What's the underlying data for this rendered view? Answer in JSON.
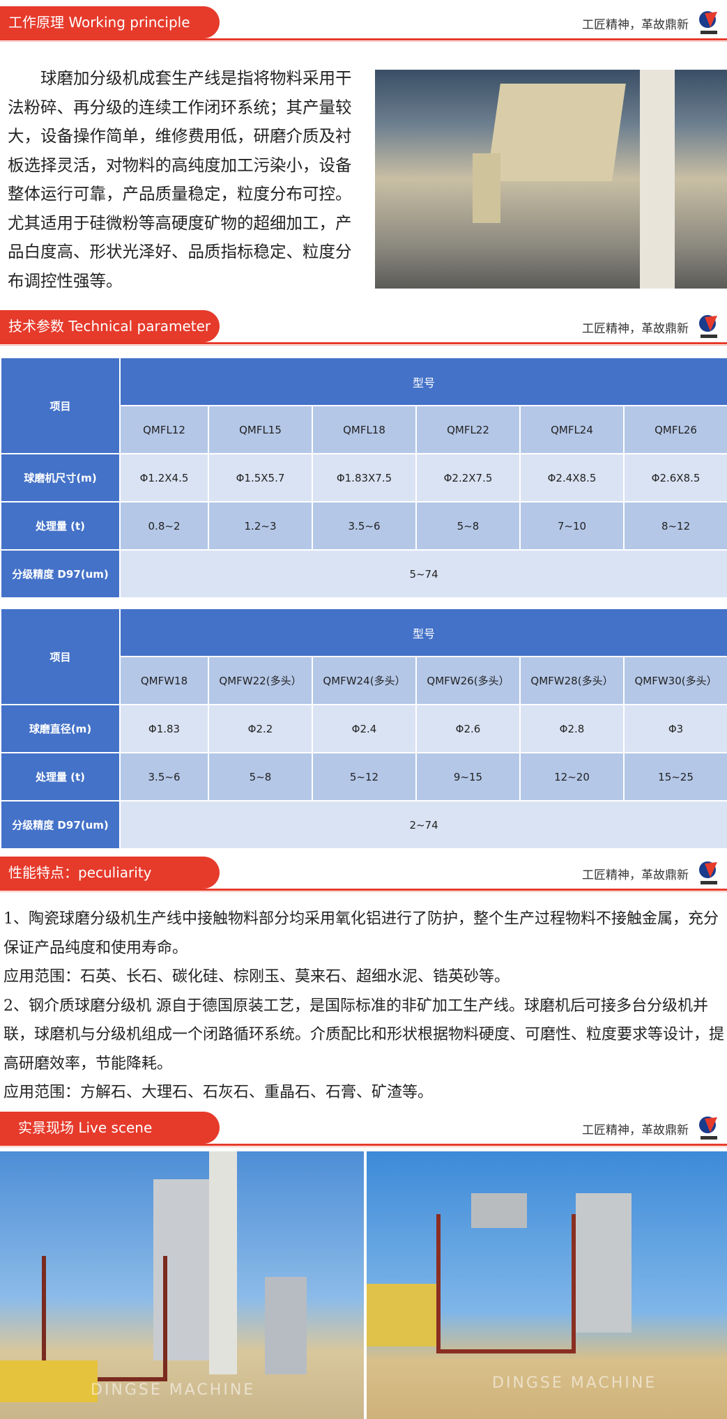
{
  "slogan": "工匠精神，革故鼎新",
  "sections": {
    "working": "工作原理  Working principle",
    "tech": "技术参数 Technical parameter",
    "peculiarity": "性能特点：peculiarity",
    "live": "实景现场    Live scene"
  },
  "working_text": "球磨加分级机成套生产线是指将物料采用干法粉碎、再分级的连续工作闭环系统；其产量较大，设备操作简单，维修费用低，研磨介质及衬板选择灵活，对物料的高纯度加工污染小，设备整体运行可靠，产品质量稳定，粒度分布可控。尤其适用于硅微粉等高硬度矿物的超细加工，产品白度高、形状光泽好、品质指标稳定、粒度分布调控性强等。",
  "table1": {
    "item_header": "项目",
    "model_header": "型号",
    "models": [
      "QMFL12",
      "QMFL15",
      "QMFL18",
      "QMFL22",
      "QMFL24",
      "QMFL26"
    ],
    "rows": [
      {
        "label": "球磨机尺寸(m)",
        "values": [
          "Φ1.2X4.5",
          "Φ1.5X5.7",
          "Φ1.83X7.5",
          "Φ2.2X7.5",
          "Φ2.4X8.5",
          "Φ2.6X8.5"
        ]
      },
      {
        "label": "处理量 (t)",
        "values": [
          "0.8~2",
          "1.2~3",
          "3.5~6",
          "5~8",
          "7~10",
          "8~12"
        ]
      }
    ],
    "precision_label": "分级精度 D97(um)",
    "precision_value": "5~74"
  },
  "table2": {
    "item_header": "项目",
    "model_header": "型号",
    "models": [
      "QMFW18",
      "QMFW22(多头）",
      "QMFW24(多头）",
      "QMFW26(多头）",
      "QMFW28(多头）",
      "QMFW30(多头）"
    ],
    "rows": [
      {
        "label": "球磨直径(m)",
        "values": [
          "Φ1.83",
          "Φ2.2",
          "Φ2.4",
          "Φ2.6",
          "Φ2.8",
          "Φ3"
        ]
      },
      {
        "label": "处理量 (t)",
        "values": [
          "3.5~6",
          "5~8",
          "5~12",
          "9~15",
          "12~20",
          "15~25"
        ]
      }
    ],
    "precision_label": "分级精度 D97(um)",
    "precision_value": "2~74"
  },
  "features": [
    "1、陶瓷球磨分级机生产线中接触物料部分均采用氧化铝进行了防护，整个生产过程物料不接触金属，充分保证产品纯度和使用寿命。",
    "应用范围：石英、长石、碳化硅、棕刚玉、莫来石、超细水泥、锆英砂等。",
    "2、钢介质球磨分级机 源自于德国原装工艺，是国际标准的非矿加工生产线。球磨机后可接多台分级机并联，球磨机与分级机组成一个闭路循环系统。介质配比和形状根据物料硬度、可磨性、粒度要求等设计，提高研磨效率，节能降耗。",
    "应用范围：方解石、大理石、石灰石、重晶石、石膏、矿渣等。"
  ],
  "watermark": "DINGSE MACHINE",
  "colors": {
    "accent": "#e63a2b",
    "table_header": "#4472c8",
    "table_mid": "#b4c7e7",
    "table_light": "#dae3f3"
  },
  "icons": {
    "logo": "gd-logo"
  }
}
